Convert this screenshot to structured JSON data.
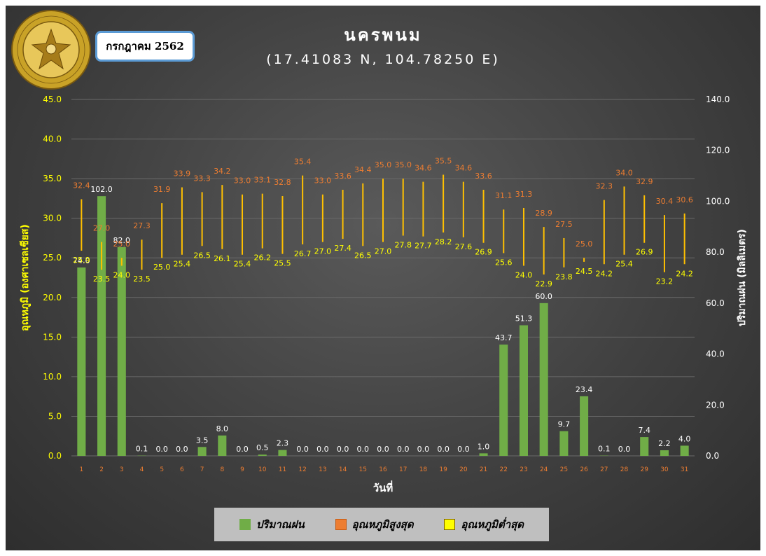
{
  "header": {
    "month": "กรกฎาคม 2562",
    "title": "นครพนม",
    "subtitle": "(17.41083 N, 104.78250 E)"
  },
  "legend": {
    "rain": "ปริมาณฝน",
    "tmax": "อุณหภูมิสูงสุด",
    "tmin": "อุณหภูมิต่ำสุด"
  },
  "colors": {
    "rain": "#70ad47",
    "tmax": "#ed7d31",
    "tmin": "#ffff00",
    "range": "#ffc000"
  },
  "chart_data": {
    "type": "bar",
    "xlabel": "วันที่",
    "ylabel_left": "อุณหภูมิ (องศาเซลเซียส)",
    "ylabel_right": "ปริมาณฝน (มิลลิเมตร)",
    "ylim_left": [
      0,
      45
    ],
    "ylim_right": [
      0,
      140
    ],
    "yticks_left": [
      "0.0",
      "5.0",
      "10.0",
      "15.0",
      "20.0",
      "25.0",
      "30.0",
      "35.0",
      "40.0",
      "45.0"
    ],
    "yticks_right": [
      "0.0",
      "20.0",
      "40.0",
      "60.0",
      "80.0",
      "100.0",
      "120.0",
      "140.0"
    ],
    "categories": [
      "1",
      "2",
      "3",
      "4",
      "5",
      "6",
      "7",
      "8",
      "9",
      "10",
      "11",
      "12",
      "13",
      "14",
      "15",
      "16",
      "17",
      "18",
      "19",
      "20",
      "21",
      "22",
      "23",
      "24",
      "25",
      "26",
      "27",
      "28",
      "29",
      "30",
      "31"
    ],
    "series": [
      {
        "name": "ปริมาณฝน",
        "axis": "right",
        "values": [
          74.0,
          102.0,
          82.0,
          0.1,
          0.0,
          0.0,
          3.5,
          8.0,
          0.0,
          0.5,
          2.3,
          0.0,
          0.0,
          0.0,
          0.0,
          0.0,
          0.0,
          0.0,
          0.0,
          0.0,
          1.0,
          43.7,
          51.3,
          60.0,
          9.7,
          23.4,
          0.1,
          0.0,
          7.4,
          2.2,
          4.0
        ]
      },
      {
        "name": "อุณหภูมิสูงสุด",
        "axis": "left",
        "values": [
          32.4,
          27.0,
          25.0,
          27.3,
          31.9,
          33.9,
          33.3,
          34.2,
          33.0,
          33.1,
          32.8,
          35.4,
          33.0,
          33.6,
          34.4,
          35.0,
          35.0,
          34.6,
          35.5,
          34.6,
          33.6,
          31.1,
          31.3,
          28.9,
          27.5,
          25.0,
          32.3,
          34.0,
          32.9,
          30.4,
          30.6
        ]
      },
      {
        "name": "อุณหภูมิต่ำสุด",
        "axis": "left",
        "values": [
          25.9,
          23.5,
          24.0,
          23.5,
          25.0,
          25.4,
          26.5,
          26.1,
          25.4,
          26.2,
          25.5,
          26.7,
          27.0,
          27.4,
          26.5,
          27.0,
          27.8,
          27.7,
          28.2,
          27.6,
          26.9,
          25.6,
          24.0,
          22.9,
          23.8,
          24.5,
          24.2,
          25.4,
          26.9,
          23.2,
          24.2
        ]
      }
    ]
  }
}
